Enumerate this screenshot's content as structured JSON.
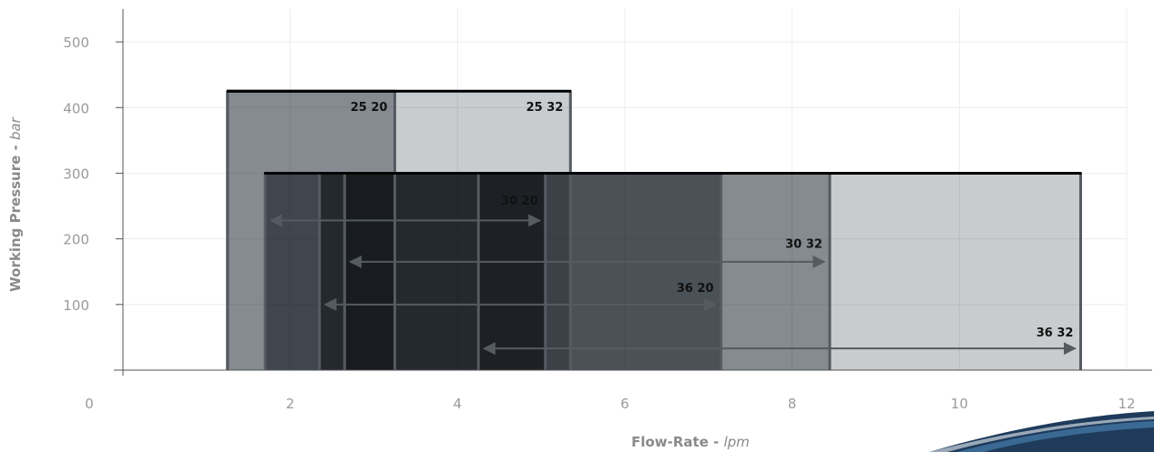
{
  "chart_data": {
    "type": "range-bar",
    "xlabel": "Flow-Rate",
    "xunit": "lpm",
    "ylabel": "Working Pressure",
    "yunit": "bar",
    "xlim": [
      0,
      12
    ],
    "ylim": [
      0,
      550
    ],
    "x_ticks": [
      "0",
      "2",
      "4",
      "6",
      "8",
      "10",
      "12"
    ],
    "y_ticks": [
      "100",
      "200",
      "300",
      "400",
      "500"
    ],
    "grid": true,
    "series": [
      {
        "name": "25 20",
        "x_min": 1.25,
        "x_max": 3.25,
        "pressure": 425,
        "color": "#a9aeb2"
      },
      {
        "name": "25 32",
        "x_min": 1.25,
        "x_max": 5.35,
        "pressure": 425,
        "color": "#c9ccce"
      },
      {
        "name": "30 20",
        "x_min": 1.7,
        "x_max": 5.05,
        "pressure": 300,
        "color": "#7a8088"
      },
      {
        "name": "30 32",
        "x_min": 2.65,
        "x_max": 8.45,
        "pressure": 300,
        "color": "#a9aeb2"
      },
      {
        "name": "36 20",
        "x_min": 2.35,
        "x_max": 7.15,
        "pressure": 300,
        "color": "#8e949a"
      },
      {
        "name": "36 32",
        "x_min": 4.25,
        "x_max": 11.45,
        "pressure": 300,
        "color": "#c9ccce"
      }
    ],
    "annotations": [
      {
        "series": "30 20",
        "arrow_y": 228,
        "label_y": 252
      },
      {
        "series": "30 32",
        "arrow_y": 165,
        "label_y": 186
      },
      {
        "series": "36 20",
        "arrow_y": 100,
        "label_y": 119
      },
      {
        "series": "36 32",
        "arrow_y": 33,
        "label_y": 51
      }
    ]
  }
}
